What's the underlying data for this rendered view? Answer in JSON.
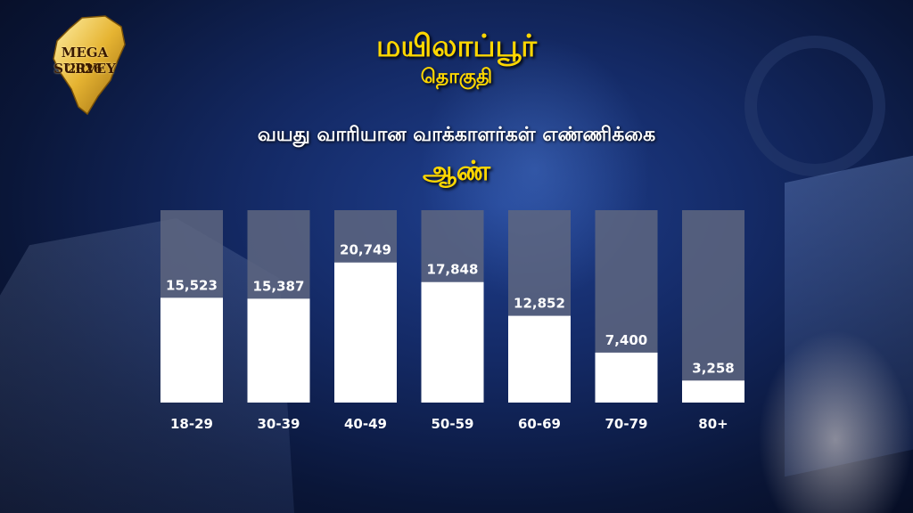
{
  "header": {
    "constituency": "மயிலாப்பூர்",
    "constituency_sub": "தொகுதி",
    "chart_heading": "வயது வாரியான வாக்காளர்கள் எண்ணிக்கை",
    "gender": "ஆண்"
  },
  "logo": {
    "brand": "MEGA SURVEY",
    "year": "2026"
  },
  "colors": {
    "accent": "#ffd700",
    "bar_fill": "#ffffff",
    "bar_track": "#5e6680",
    "label": "#ffffff"
  },
  "chart_data": {
    "type": "bar",
    "categories": [
      "18-29",
      "30-39",
      "40-49",
      "50-59",
      "60-69",
      "70-79",
      "80+"
    ],
    "values": [
      15523,
      15387,
      20749,
      17848,
      12852,
      7400,
      3258
    ],
    "value_labels": [
      "15,523",
      "15,387",
      "20,749",
      "17,848",
      "12,852",
      "7,400",
      "3,258"
    ],
    "title": "வயது வாரியான வாக்காளர்கள் எண்ணிக்கை",
    "ylim": [
      0,
      28500
    ],
    "grid": false
  }
}
